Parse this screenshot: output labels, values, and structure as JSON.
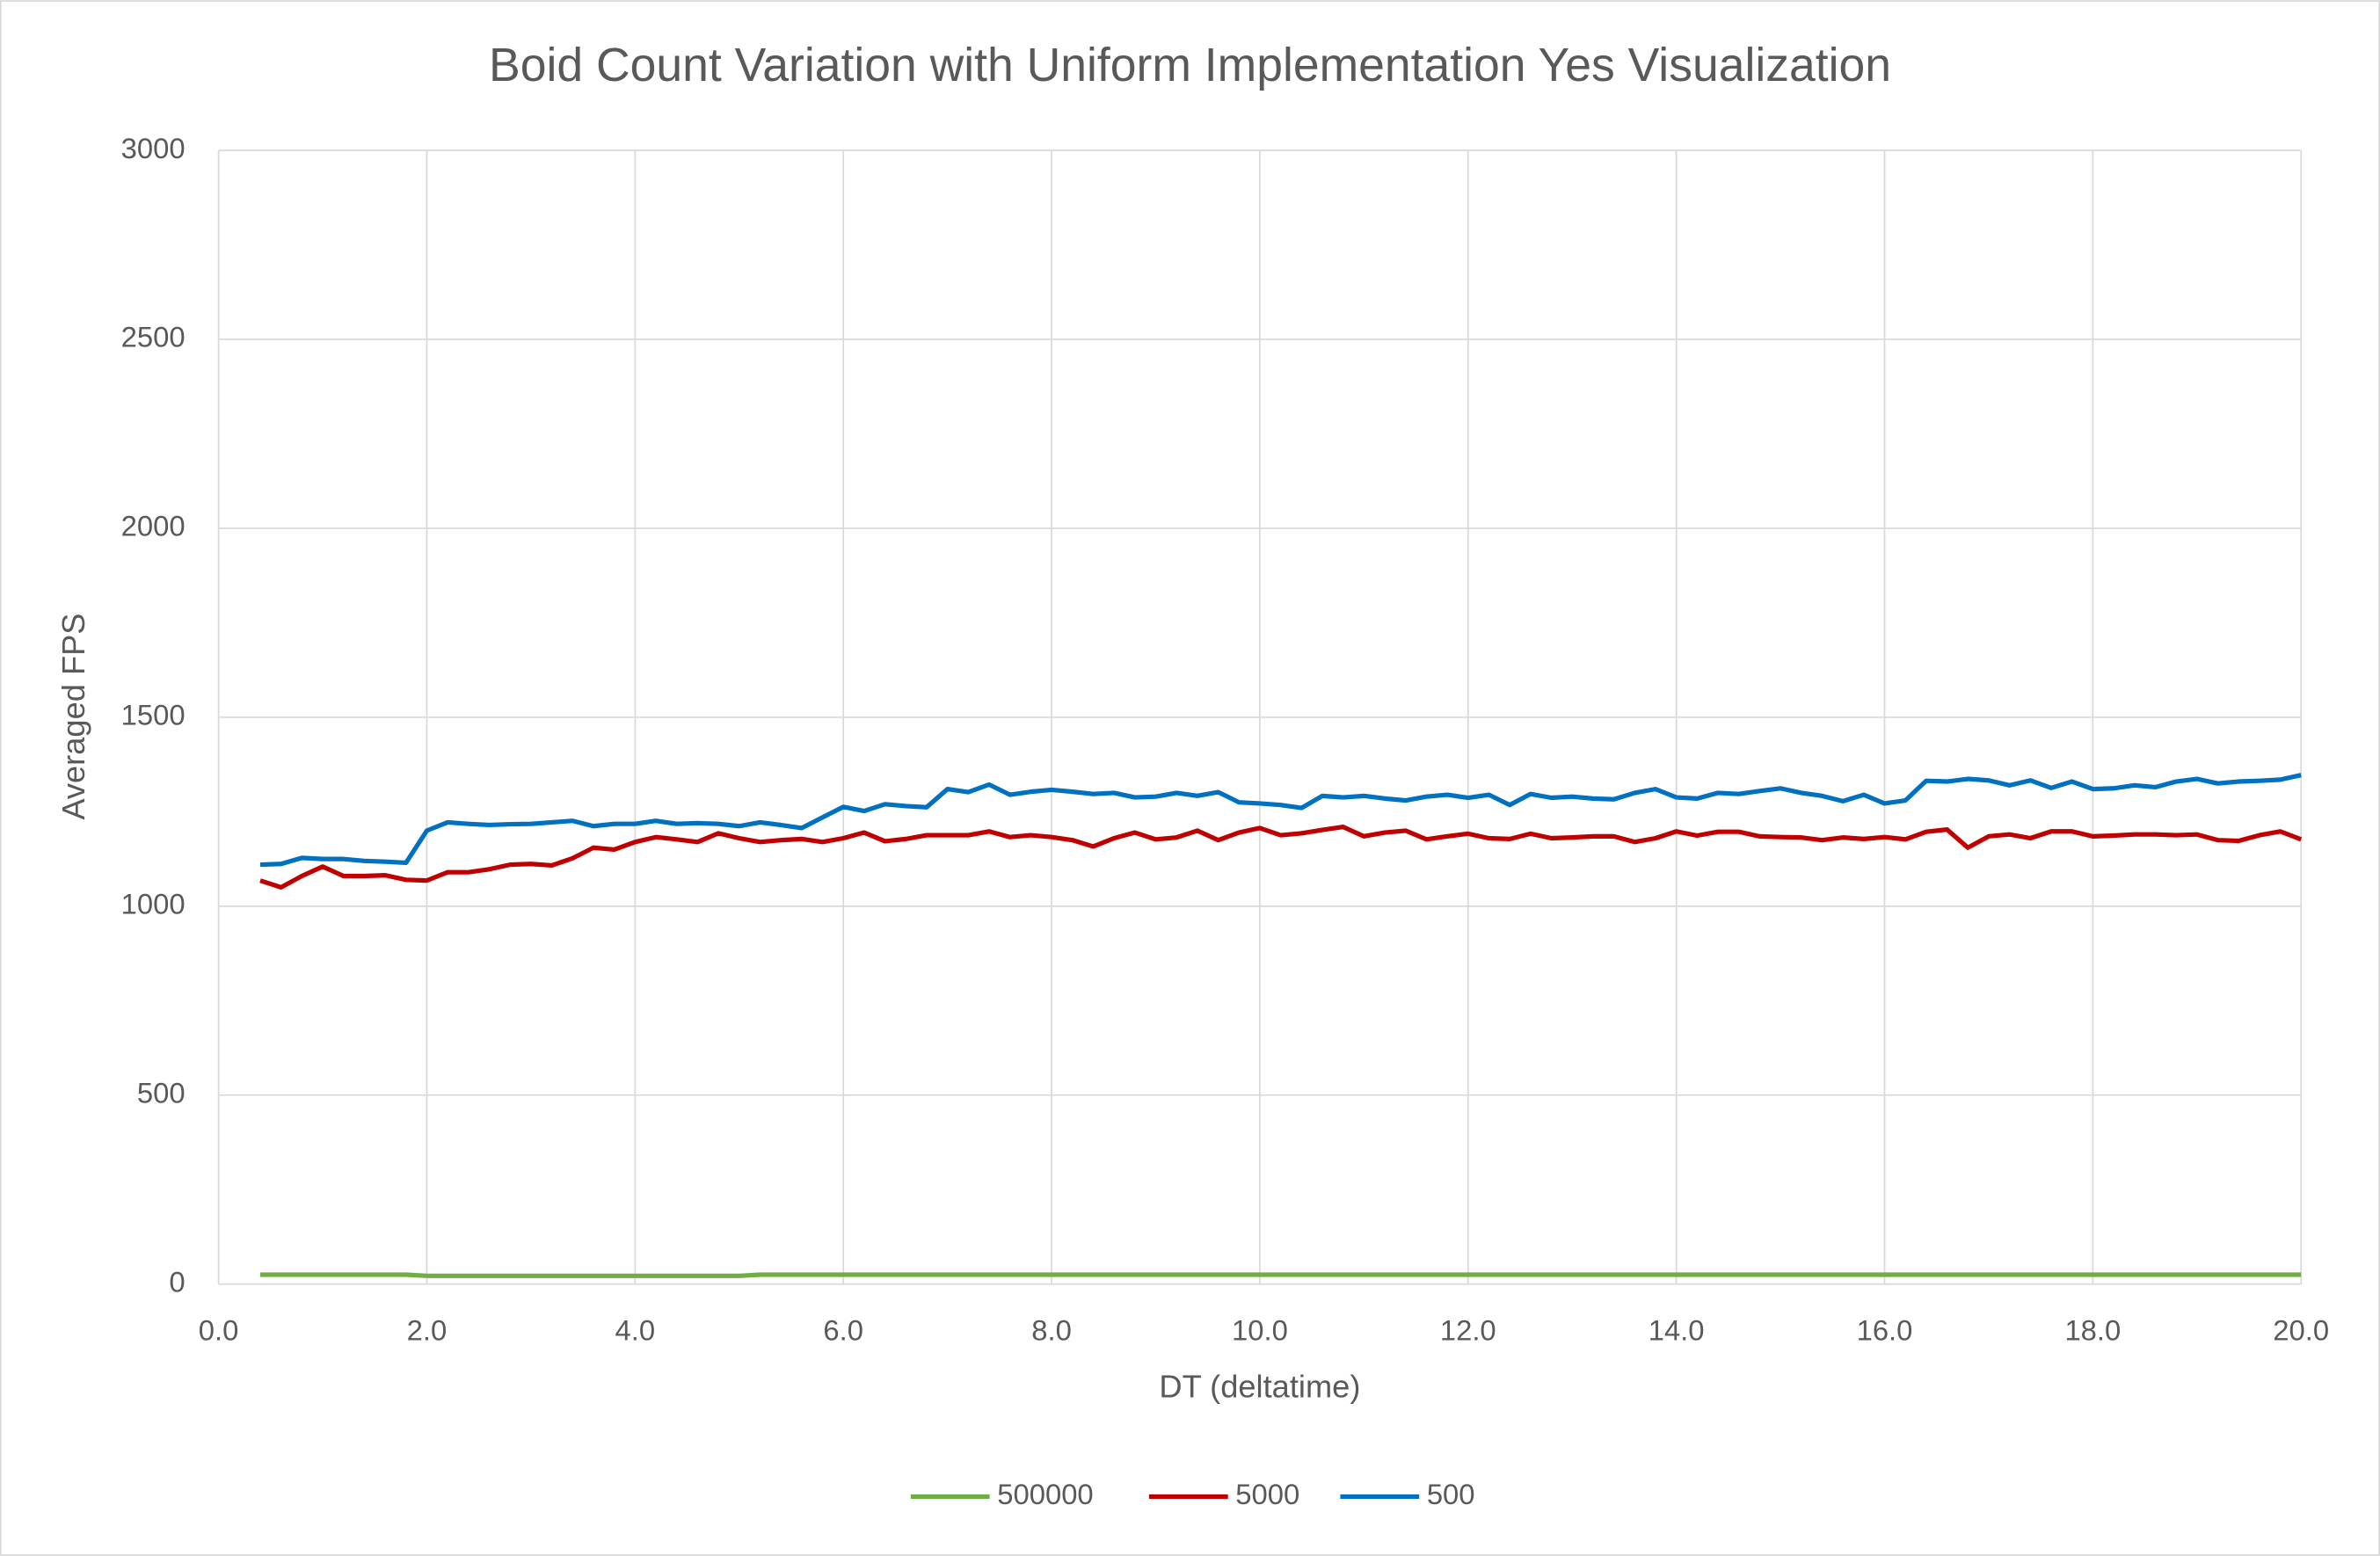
{
  "chart_data": {
    "type": "line",
    "title": "Boid Count Variation with Uniform Implementation Yes Visualization",
    "xlabel": "DT (deltatime)",
    "ylabel": "Averaged FPS",
    "x": [
      0.4,
      0.6,
      0.8,
      1.0,
      1.2,
      1.4,
      1.6,
      1.8,
      2.0,
      2.2,
      2.4,
      2.6,
      2.8,
      3.0,
      3.2,
      3.4,
      3.6,
      3.8,
      4.0,
      4.2,
      4.4,
      4.6,
      4.8,
      5.0,
      5.2,
      5.4,
      5.6,
      5.8,
      6.0,
      6.2,
      6.4,
      6.6,
      6.8,
      7.0,
      7.2,
      7.4,
      7.6,
      7.8,
      8.0,
      8.2,
      8.4,
      8.6,
      8.8,
      9.0,
      9.2,
      9.4,
      9.6,
      9.8,
      10.0,
      10.2,
      10.4,
      10.6,
      10.8,
      11.0,
      11.2,
      11.4,
      11.6,
      11.8,
      12.0,
      12.2,
      12.4,
      12.6,
      12.8,
      13.0,
      13.2,
      13.4,
      13.6,
      13.8,
      14.0,
      14.2,
      14.4,
      14.6,
      14.8,
      15.0,
      15.2,
      15.4,
      15.6,
      15.8,
      16.0,
      16.2,
      16.4,
      16.6,
      16.8,
      17.0,
      17.2,
      17.4,
      17.6,
      17.8,
      18.0,
      18.2,
      18.4,
      18.6,
      18.8,
      19.0,
      19.2,
      19.4,
      19.6,
      19.8,
      20.0
    ],
    "series": [
      {
        "name": "500000",
        "color": "#70ad47",
        "values": [
          25,
          25,
          25,
          25,
          25,
          25,
          25,
          25,
          22,
          22,
          22,
          22,
          22,
          22,
          22,
          22,
          22,
          22,
          22,
          22,
          22,
          22,
          22,
          22,
          25,
          25,
          25,
          25,
          25,
          25,
          25,
          25,
          25,
          25,
          25,
          25,
          25,
          25,
          25,
          25,
          25,
          25,
          25,
          25,
          25,
          25,
          25,
          25,
          25,
          25,
          25,
          25,
          25,
          25,
          25,
          25,
          25,
          25,
          25,
          25,
          25,
          25,
          25,
          25,
          25,
          25,
          25,
          25,
          25,
          25,
          25,
          25,
          25,
          25,
          25,
          25,
          25,
          25,
          25,
          25,
          25,
          25,
          25,
          25,
          25,
          25,
          25,
          25,
          25,
          25,
          25,
          25,
          25,
          25,
          25,
          25,
          25,
          25,
          25
        ]
      },
      {
        "name": "5000",
        "color": "#c00000",
        "values": [
          1068,
          1050,
          1080,
          1105,
          1080,
          1080,
          1082,
          1070,
          1068,
          1090,
          1090,
          1098,
          1110,
          1112,
          1108,
          1127,
          1155,
          1150,
          1170,
          1183,
          1177,
          1170,
          1193,
          1180,
          1170,
          1175,
          1178,
          1170,
          1180,
          1195,
          1172,
          1178,
          1188,
          1188,
          1188,
          1198,
          1183,
          1188,
          1183,
          1175,
          1158,
          1180,
          1195,
          1177,
          1182,
          1200,
          1175,
          1195,
          1207,
          1188,
          1193,
          1202,
          1210,
          1185,
          1195,
          1200,
          1177,
          1185,
          1192,
          1180,
          1178,
          1192,
          1180,
          1182,
          1185,
          1185,
          1170,
          1180,
          1198,
          1187,
          1197,
          1197,
          1185,
          1183,
          1182,
          1175,
          1182,
          1178,
          1183,
          1177,
          1197,
          1203,
          1155,
          1185,
          1190,
          1180,
          1198,
          1198,
          1185,
          1187,
          1190,
          1190,
          1188,
          1190,
          1175,
          1173,
          1188,
          1198,
          1177
        ]
      },
      {
        "name": "500",
        "color": "#0070c0",
        "values": [
          1110,
          1112,
          1128,
          1125,
          1125,
          1120,
          1118,
          1115,
          1200,
          1222,
          1218,
          1215,
          1217,
          1218,
          1222,
          1226,
          1212,
          1218,
          1218,
          1226,
          1218,
          1220,
          1218,
          1212,
          1222,
          1215,
          1207,
          1235,
          1263,
          1252,
          1270,
          1265,
          1262,
          1310,
          1302,
          1322,
          1295,
          1303,
          1308,
          1303,
          1297,
          1300,
          1288,
          1290,
          1300,
          1292,
          1302,
          1275,
          1272,
          1268,
          1260,
          1292,
          1288,
          1292,
          1285,
          1280,
          1290,
          1295,
          1287,
          1295,
          1268,
          1297,
          1287,
          1290,
          1285,
          1283,
          1300,
          1310,
          1288,
          1285,
          1300,
          1297,
          1305,
          1312,
          1300,
          1292,
          1278,
          1295,
          1272,
          1280,
          1332,
          1330,
          1337,
          1333,
          1320,
          1333,
          1313,
          1330,
          1310,
          1312,
          1320,
          1315,
          1330,
          1337,
          1325,
          1330,
          1332,
          1335,
          1347
        ]
      }
    ],
    "xlim": [
      0,
      20
    ],
    "xticks": [
      {
        "value": 0,
        "label": "0.0"
      },
      {
        "value": 2,
        "label": "2.0"
      },
      {
        "value": 4,
        "label": "4.0"
      },
      {
        "value": 6,
        "label": "6.0"
      },
      {
        "value": 8,
        "label": "8.0"
      },
      {
        "value": 10,
        "label": "10.0"
      },
      {
        "value": 12,
        "label": "12.0"
      },
      {
        "value": 14,
        "label": "14.0"
      },
      {
        "value": 16,
        "label": "16.0"
      },
      {
        "value": 18,
        "label": "18.0"
      },
      {
        "value": 20,
        "label": "20.0"
      }
    ],
    "ylim": [
      0,
      3000
    ],
    "yticks": [
      0,
      500,
      1000,
      1500,
      2000,
      2500,
      3000
    ],
    "grid": true,
    "legend": "bottom"
  }
}
